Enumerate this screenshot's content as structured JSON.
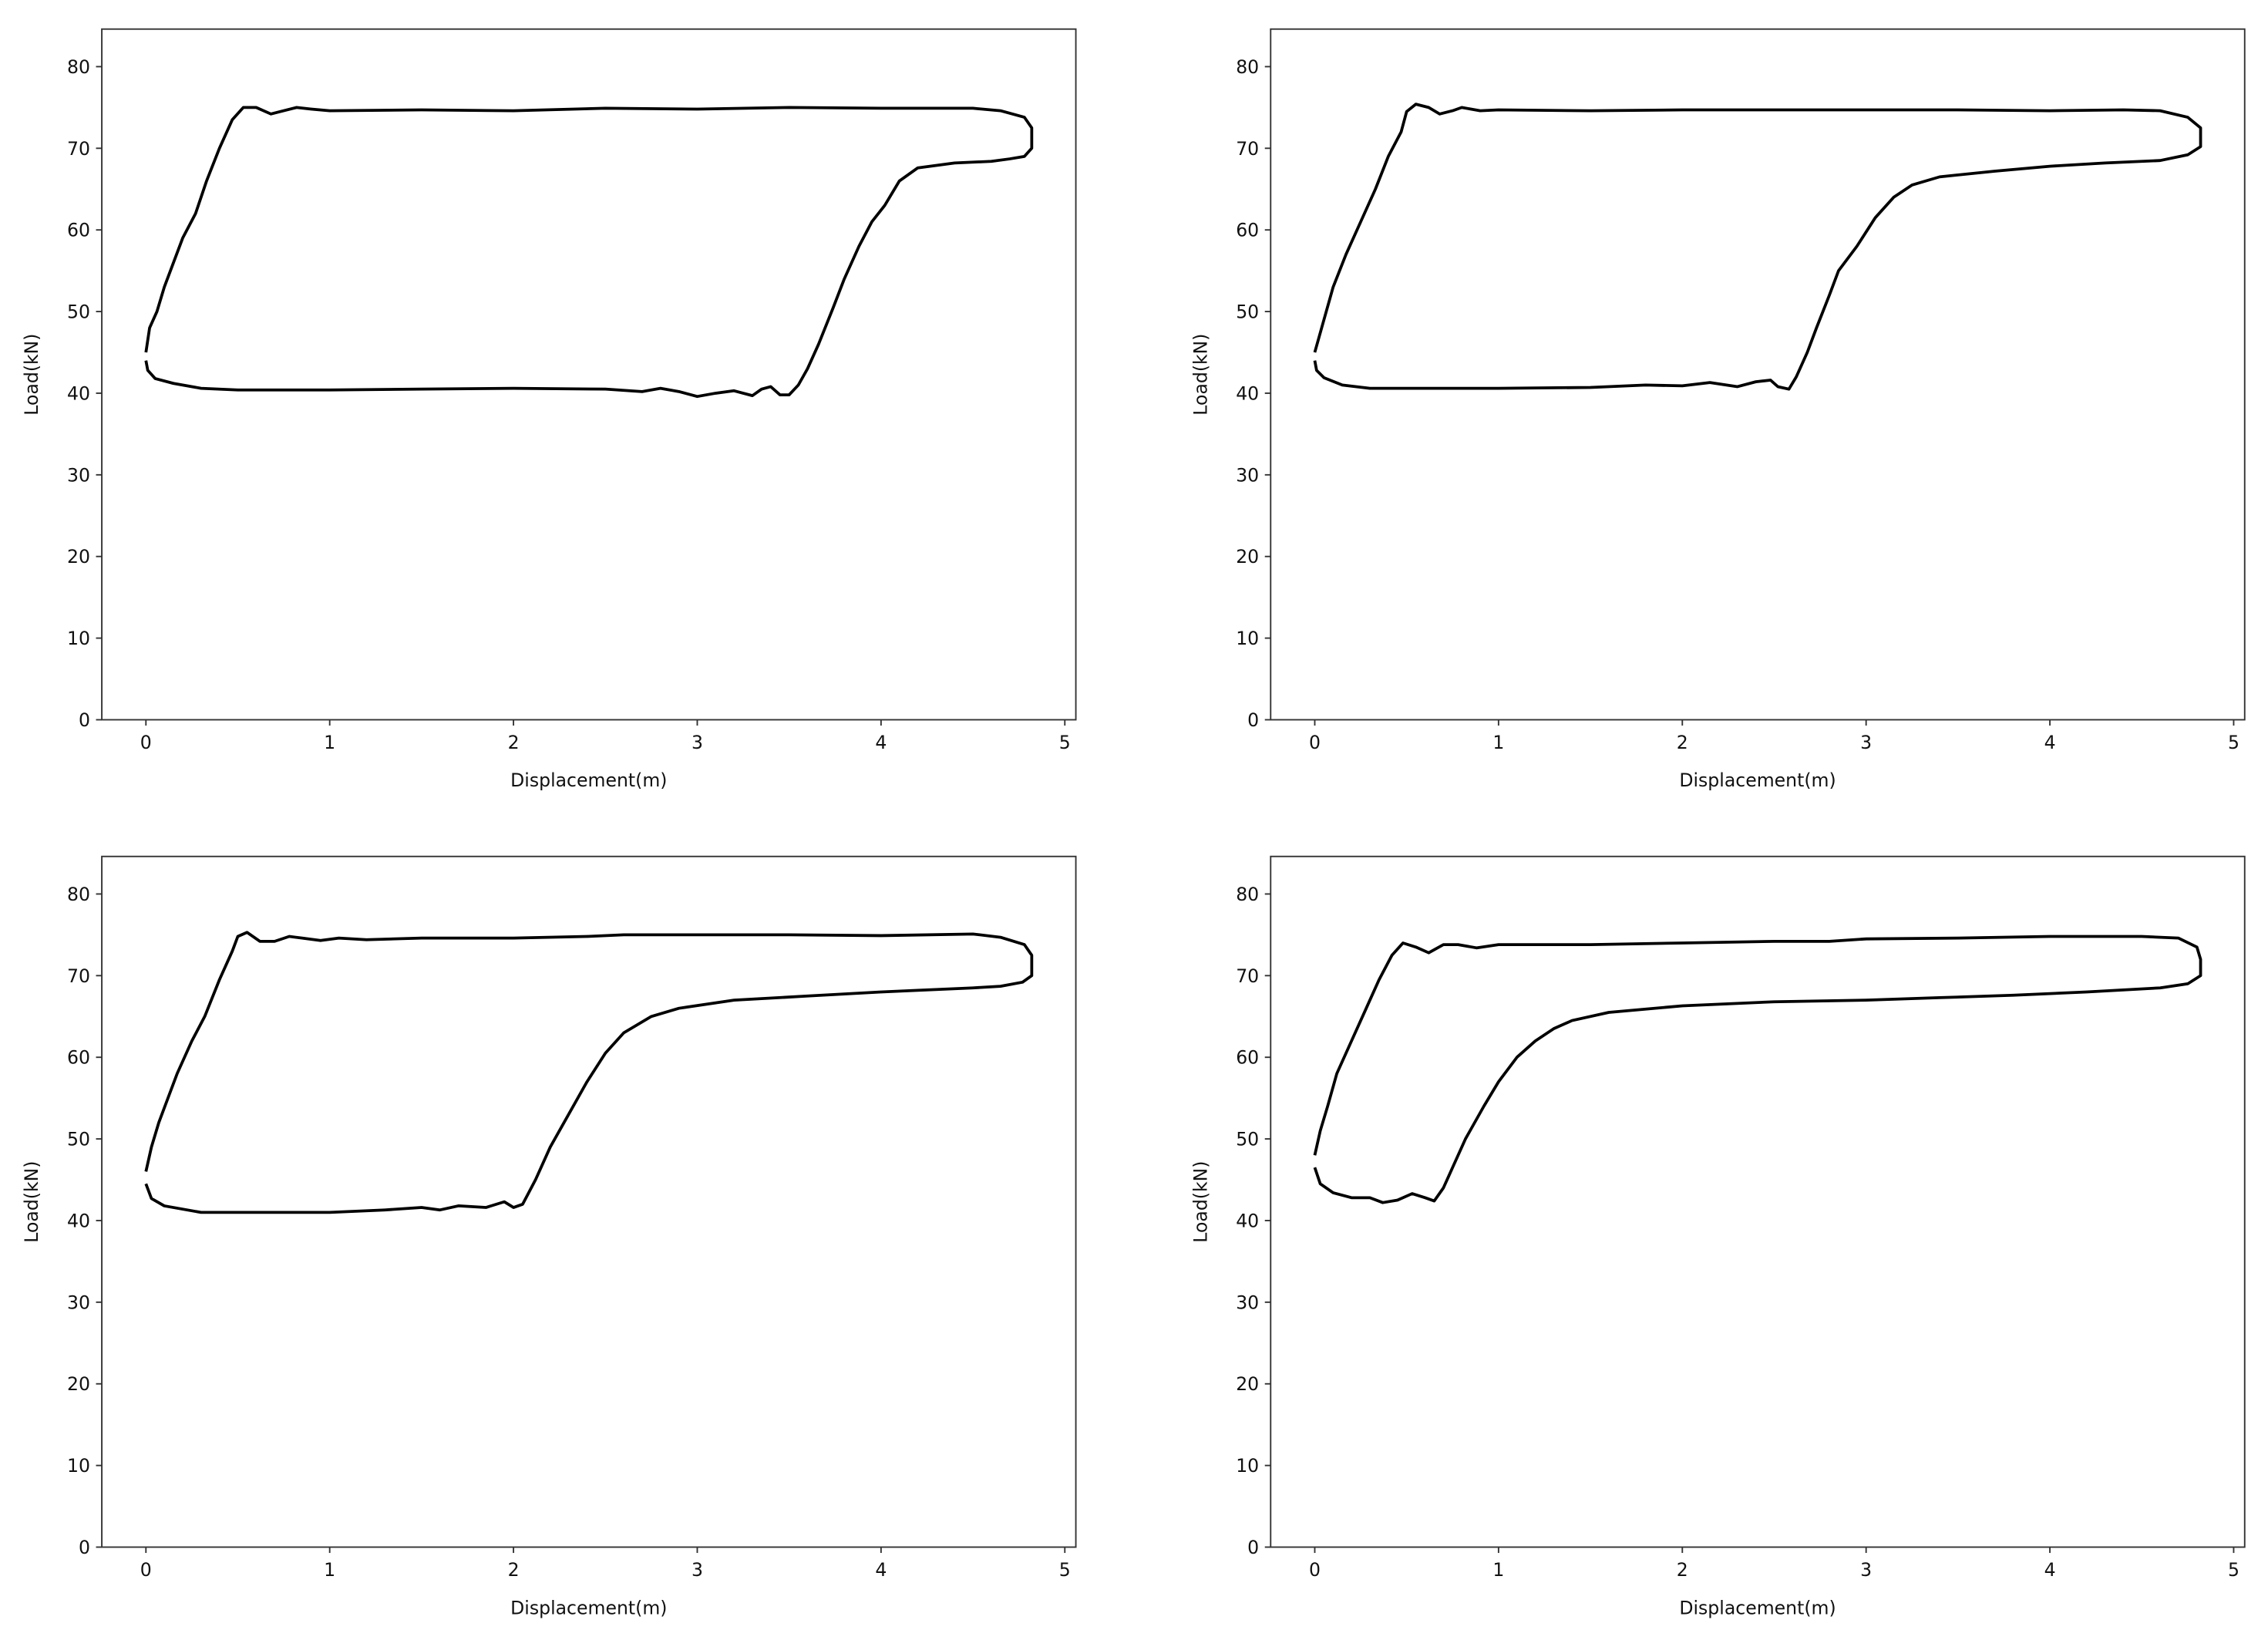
{
  "chart_data": [
    {
      "type": "line",
      "xlabel": "Displacement(m)",
      "ylabel": "Load(kN)",
      "color": "#000000",
      "xlim": [
        -0.24,
        5.06
      ],
      "ylim": [
        0,
        84.6
      ],
      "xticks": [
        0,
        1,
        2,
        3,
        4,
        5
      ],
      "yticks": [
        0,
        10,
        20,
        30,
        40,
        50,
        60,
        70,
        80
      ],
      "x": [
        0,
        0.02,
        0.06,
        0.1,
        0.15,
        0.2,
        0.27,
        0.33,
        0.4,
        0.47,
        0.53,
        0.6,
        0.68,
        0.75,
        0.82,
        0.9,
        1,
        1.5,
        2,
        2.5,
        3,
        3.5,
        4,
        4.5,
        4.65,
        4.78,
        4.82,
        4.82,
        4.78,
        4.7,
        4.6,
        4.4,
        4.2,
        4.1,
        4.02,
        3.95,
        3.88,
        3.8,
        3.74,
        3.66,
        3.6,
        3.55,
        3.5,
        3.45,
        3.4,
        3.35,
        3.3,
        3.2,
        3.1,
        3,
        2.9,
        2.8,
        2.7,
        2.5,
        2,
        1.5,
        1,
        0.5,
        0.3,
        0.15,
        0.05,
        0.01,
        0
      ],
      "values": [
        45,
        48,
        50,
        53,
        56,
        59,
        62,
        66,
        70,
        73.5,
        75,
        75,
        74.2,
        74.6,
        75,
        74.8,
        74.6,
        74.7,
        74.6,
        74.9,
        74.8,
        75,
        74.9,
        74.9,
        74.6,
        73.8,
        72.5,
        70,
        69,
        68.7,
        68.4,
        68.2,
        67.6,
        66,
        63,
        61,
        58,
        54,
        50.5,
        46,
        43,
        41,
        39.8,
        39.8,
        40.8,
        40.5,
        39.7,
        40.3,
        40,
        39.6,
        40.2,
        40.6,
        40.2,
        40.5,
        40.6,
        40.5,
        40.4,
        40.4,
        40.6,
        41.2,
        41.8,
        42.8,
        44
      ]
    },
    {
      "type": "line",
      "xlabel": "Displacement(m)",
      "ylabel": "Load(kN)",
      "color": "#000000",
      "xlim": [
        -0.24,
        5.06
      ],
      "ylim": [
        0,
        84.6
      ],
      "xticks": [
        0,
        1,
        2,
        3,
        4,
        5
      ],
      "yticks": [
        0,
        10,
        20,
        30,
        40,
        50,
        60,
        70,
        80
      ],
      "x": [
        0,
        0.05,
        0.1,
        0.17,
        0.25,
        0.33,
        0.4,
        0.47,
        0.5,
        0.55,
        0.62,
        0.68,
        0.75,
        0.8,
        0.9,
        1,
        1.5,
        2,
        2.5,
        3,
        3.5,
        4,
        4.4,
        4.6,
        4.75,
        4.82,
        4.82,
        4.75,
        4.6,
        4.3,
        4,
        3.7,
        3.4,
        3.25,
        3.15,
        3.05,
        2.95,
        2.85,
        2.8,
        2.73,
        2.68,
        2.62,
        2.58,
        2.52,
        2.48,
        2.4,
        2.3,
        2.15,
        2,
        1.8,
        1.5,
        1,
        0.5,
        0.3,
        0.15,
        0.05,
        0.01,
        0
      ],
      "values": [
        45,
        49,
        53,
        57,
        61,
        65,
        69,
        72,
        74.5,
        75.4,
        75,
        74.2,
        74.6,
        75,
        74.6,
        74.7,
        74.6,
        74.7,
        74.7,
        74.7,
        74.7,
        74.6,
        74.7,
        74.6,
        73.8,
        72.5,
        70.2,
        69.2,
        68.5,
        68.2,
        67.8,
        67.2,
        66.5,
        65.5,
        64,
        61.5,
        58,
        55,
        52,
        48,
        45,
        42,
        40.5,
        40.8,
        41.6,
        41.4,
        40.8,
        41.3,
        40.9,
        41,
        40.7,
        40.6,
        40.6,
        40.6,
        41,
        41.9,
        42.8,
        44
      ]
    },
    {
      "type": "line",
      "xlabel": "Displacement(m)",
      "ylabel": "Load(kN)",
      "color": "#000000",
      "xlim": [
        -0.24,
        5.06
      ],
      "ylim": [
        0,
        84.6
      ],
      "xticks": [
        0,
        1,
        2,
        3,
        4,
        5
      ],
      "yticks": [
        0,
        10,
        20,
        30,
        40,
        50,
        60,
        70,
        80
      ],
      "x": [
        0,
        0.03,
        0.07,
        0.12,
        0.17,
        0.25,
        0.32,
        0.4,
        0.47,
        0.5,
        0.55,
        0.62,
        0.7,
        0.78,
        0.85,
        0.95,
        1.05,
        1.2,
        1.5,
        2,
        2.4,
        2.6,
        3,
        3.5,
        4,
        4.5,
        4.65,
        4.78,
        4.82,
        4.82,
        4.77,
        4.65,
        4.5,
        4.2,
        4,
        3.6,
        3.2,
        2.9,
        2.75,
        2.6,
        2.5,
        2.4,
        2.3,
        2.2,
        2.12,
        2.05,
        2,
        1.95,
        1.85,
        1.7,
        1.6,
        1.5,
        1.3,
        1,
        0.5,
        0.3,
        0.1,
        0.03,
        0
      ],
      "values": [
        46,
        49,
        52,
        55,
        58,
        62,
        65,
        69.5,
        73,
        74.8,
        75.3,
        74.2,
        74.2,
        74.8,
        74.6,
        74.3,
        74.6,
        74.4,
        74.6,
        74.6,
        74.8,
        75,
        75,
        75,
        74.9,
        75.1,
        74.7,
        73.8,
        72.5,
        70,
        69.2,
        68.7,
        68.5,
        68.2,
        68,
        67.5,
        67,
        66,
        65,
        63,
        60.5,
        57,
        53,
        49,
        45,
        42,
        41.6,
        42.3,
        41.6,
        41.8,
        41.3,
        41.6,
        41.3,
        41,
        41,
        41,
        41.8,
        42.7,
        44.5
      ]
    },
    {
      "type": "line",
      "xlabel": "Displacement(m)",
      "ylabel": "Load(kN)",
      "color": "#000000",
      "xlim": [
        -0.24,
        5.06
      ],
      "ylim": [
        0,
        84.6
      ],
      "xticks": [
        0,
        1,
        2,
        3,
        4,
        5
      ],
      "yticks": [
        0,
        10,
        20,
        30,
        40,
        50,
        60,
        70,
        80
      ],
      "x": [
        0,
        0.03,
        0.07,
        0.12,
        0.2,
        0.28,
        0.35,
        0.42,
        0.48,
        0.55,
        0.62,
        0.7,
        0.78,
        0.88,
        1,
        1.5,
        2,
        2.5,
        2.8,
        3,
        3.5,
        4,
        4.5,
        4.7,
        4.8,
        4.82,
        4.82,
        4.75,
        4.6,
        4.2,
        3.8,
        3.4,
        3,
        2.5,
        2,
        1.6,
        1.4,
        1.3,
        1.2,
        1.1,
        1,
        0.92,
        0.82,
        0.75,
        0.7,
        0.65,
        0.6,
        0.53,
        0.45,
        0.37,
        0.3,
        0.2,
        0.1,
        0.03,
        0
      ],
      "values": [
        48,
        51,
        54,
        58,
        62,
        66,
        69.5,
        72.5,
        74,
        73.5,
        72.8,
        73.8,
        73.8,
        73.4,
        73.8,
        73.8,
        74,
        74.2,
        74.2,
        74.5,
        74.6,
        74.8,
        74.8,
        74.6,
        73.5,
        72,
        70,
        69,
        68.5,
        68,
        67.6,
        67.3,
        67,
        66.8,
        66.3,
        65.5,
        64.5,
        63.5,
        62,
        60,
        57,
        54,
        50,
        46.5,
        44,
        42.4,
        42.8,
        43.3,
        42.5,
        42.2,
        42.8,
        42.8,
        43.4,
        44.5,
        46.5
      ]
    }
  ]
}
